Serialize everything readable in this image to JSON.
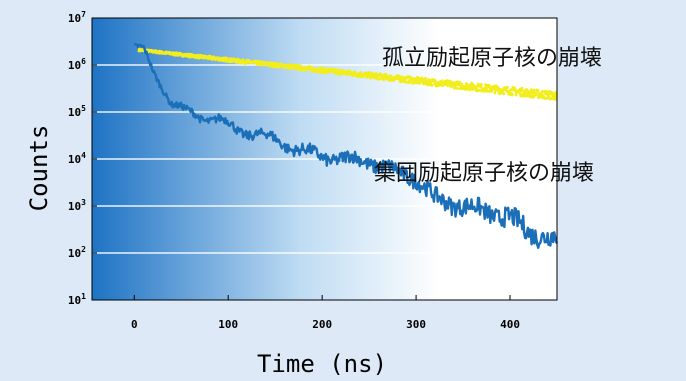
{
  "chart_data": {
    "type": "scatter",
    "title": "",
    "xlabel": "Time (ns)",
    "ylabel": "Counts",
    "x_ticks": [
      "0",
      "100",
      "200",
      "300",
      "400"
    ],
    "xlim": [
      -45,
      450
    ],
    "y_ticks": [
      {
        "base": "10",
        "exp": "1"
      },
      {
        "base": "10",
        "exp": "2"
      },
      {
        "base": "10",
        "exp": "3"
      },
      {
        "base": "10",
        "exp": "4"
      },
      {
        "base": "10",
        "exp": "5"
      },
      {
        "base": "10",
        "exp": "6"
      },
      {
        "base": "10",
        "exp": "7"
      }
    ],
    "ylim_log10": [
      1,
      7
    ],
    "y_scale": "log",
    "grid": "horizontal",
    "annotations": [
      {
        "text": "孤立励起原子核の崩壊",
        "series": "isolated"
      },
      {
        "text": "集団励起原子核の崩壊",
        "series": "collective"
      }
    ],
    "series": [
      {
        "id": "isolated",
        "color": "#f2ee1e",
        "style": "scatter",
        "x": [
          5,
          50,
          100,
          150,
          200,
          250,
          300,
          350,
          400,
          450
        ],
        "log10": [
          6.32,
          6.22,
          6.11,
          6.0,
          5.89,
          5.78,
          5.67,
          5.56,
          5.45,
          5.34
        ]
      },
      {
        "id": "collective",
        "color": "#1a6fb8",
        "style": "line",
        "x": [
          0,
          10,
          20,
          30,
          40,
          55,
          70,
          90,
          110,
          130,
          150,
          175,
          200,
          225,
          250,
          275,
          300,
          320,
          340,
          360,
          380,
          400,
          420,
          440,
          450
        ],
        "log10": [
          6.4,
          6.3,
          5.85,
          5.55,
          5.2,
          5.0,
          4.9,
          4.85,
          4.6,
          4.55,
          4.4,
          4.2,
          4.05,
          4.0,
          3.95,
          3.75,
          3.6,
          3.15,
          3.05,
          2.95,
          2.85,
          2.75,
          2.45,
          2.35,
          2.3
        ]
      }
    ]
  }
}
